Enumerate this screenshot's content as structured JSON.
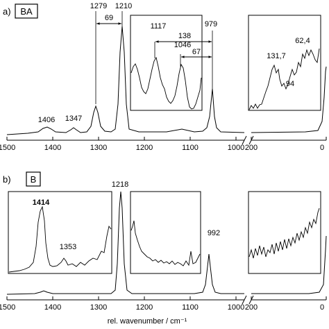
{
  "figure": {
    "xlabel": "rel. wavenumber / cm⁻¹"
  },
  "chart_data": [
    {
      "type": "line",
      "panel_label": "a)",
      "sample_label": "BA",
      "x_axis": {
        "ticks": [
          1500,
          1400,
          1300,
          1200,
          1100,
          1000,
          200,
          0
        ],
        "tick_labels": [
          "1500",
          "1400",
          "1300",
          "1200",
          "1100",
          "1000",
          "200",
          "0"
        ],
        "reversed": true,
        "broken_between": [
          1000,
          200
        ]
      },
      "peaks": [
        {
          "x": 1406,
          "label": "1406"
        },
        {
          "x": 1347,
          "label": "1347"
        },
        {
          "x": 1279,
          "label": "1279"
        },
        {
          "x": 1210,
          "label": "1210"
        },
        {
          "x": 979,
          "label": "979"
        }
      ],
      "main_annotations": [
        {
          "from": 1279,
          "to": 1210,
          "label": "69"
        }
      ],
      "insets": [
        {
          "x_range": [
            1160,
            990
          ],
          "peaks": [
            {
              "x": 1117,
              "label": "1117"
            },
            {
              "x": 1046,
              "label": "1046"
            },
            {
              "x": 979,
              "label": "979"
            }
          ],
          "annotations": [
            {
              "from": 1117,
              "to": 979,
              "label": "138"
            },
            {
              "from": 1046,
              "to": 979,
              "label": "67"
            }
          ]
        },
        {
          "x_range": [
            200,
            0
          ],
          "peaks": [
            {
              "x": 131.7,
              "label": "131,7"
            },
            {
              "x": 94,
              "label": "94"
            },
            {
              "x": 62.4,
              "label": "62,4"
            }
          ]
        }
      ]
    },
    {
      "type": "line",
      "panel_label": "b)",
      "sample_label": "B",
      "x_axis": {
        "ticks": [
          1500,
          1400,
          1300,
          1200,
          1100,
          1000,
          200,
          0
        ],
        "tick_labels": [
          "1500",
          "1400",
          "1300",
          "1200",
          "1100",
          "1000",
          "200",
          "0"
        ],
        "reversed": true,
        "broken_between": [
          1000,
          200
        ]
      },
      "peaks": [
        {
          "x": 1218,
          "label": "1218"
        },
        {
          "x": 992,
          "label": "992"
        }
      ],
      "insets": [
        {
          "x_range": [
            1500,
            1250
          ],
          "peaks": [
            {
              "x": 1414,
              "label": "1414"
            },
            {
              "x": 1353,
              "label": "1353"
            }
          ]
        },
        {
          "x_range": [
            1200,
            1000
          ],
          "peaks": []
        },
        {
          "x_range": [
            200,
            0
          ],
          "peaks": []
        }
      ]
    }
  ]
}
